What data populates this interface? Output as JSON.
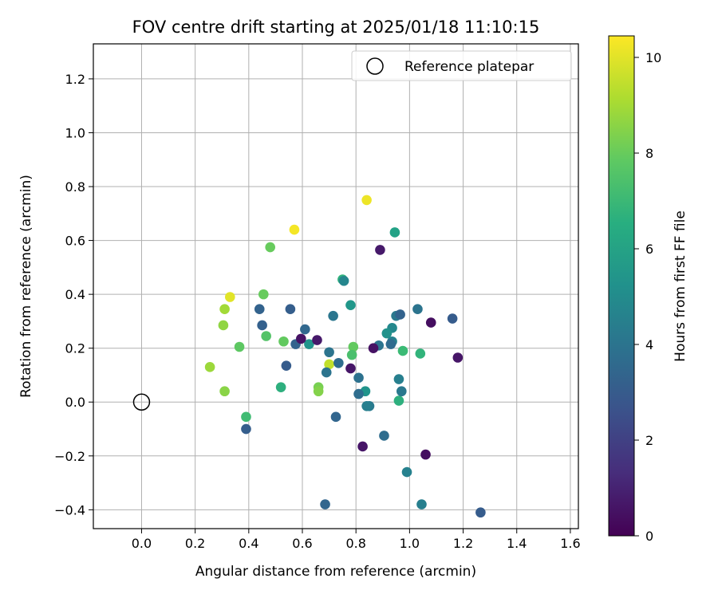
{
  "chart_data": {
    "type": "scatter",
    "title": "FOV centre drift starting at 2025/01/18 11:10:15",
    "xlabel": "Angular distance from reference (arcmin)",
    "ylabel": "Rotation from reference (arcmin)",
    "xlim": [
      -0.18,
      1.63
    ],
    "ylim": [
      -0.47,
      1.33
    ],
    "xticks": [
      "0.0",
      "0.2",
      "0.4",
      "0.6",
      "0.8",
      "1.0",
      "1.2",
      "1.4",
      "1.6"
    ],
    "xtick_values": [
      0.0,
      0.2,
      0.4,
      0.6,
      0.8,
      1.0,
      1.2,
      1.4,
      1.6
    ],
    "yticks": [
      "−0.4",
      "−0.2",
      "0.0",
      "0.2",
      "0.4",
      "0.6",
      "0.8",
      "1.0",
      "1.2"
    ],
    "ytick_values": [
      -0.4,
      -0.2,
      0.0,
      0.2,
      0.4,
      0.6,
      0.8,
      1.0,
      1.2
    ],
    "grid": true,
    "legend": {
      "placement": "top-right",
      "entries": [
        {
          "label": "Reference platepar",
          "marker": "open-circle"
        }
      ]
    },
    "reference_point": {
      "x": 0.0,
      "y": 0.0
    },
    "colorbar": {
      "label": "Hours from first FF file",
      "colormap": "viridis",
      "range": [
        0,
        10.45
      ],
      "ticks": [
        "0",
        "2",
        "4",
        "6",
        "8",
        "10"
      ],
      "tick_values": [
        0,
        2,
        4,
        6,
        8,
        10
      ]
    },
    "points": [
      {
        "x": 0.84,
        "y": 0.75,
        "c": 10.2
      },
      {
        "x": 0.57,
        "y": 0.64,
        "c": 10.3
      },
      {
        "x": 0.33,
        "y": 0.39,
        "c": 10.0
      },
      {
        "x": 0.31,
        "y": 0.345,
        "c": 9.0
      },
      {
        "x": 0.305,
        "y": 0.285,
        "c": 8.7
      },
      {
        "x": 0.255,
        "y": 0.13,
        "c": 8.9
      },
      {
        "x": 0.31,
        "y": 0.04,
        "c": 8.6
      },
      {
        "x": 0.48,
        "y": 0.575,
        "c": 8.0
      },
      {
        "x": 0.455,
        "y": 0.4,
        "c": 8.0
      },
      {
        "x": 0.365,
        "y": 0.205,
        "c": 7.8
      },
      {
        "x": 0.465,
        "y": 0.245,
        "c": 7.6
      },
      {
        "x": 0.53,
        "y": 0.225,
        "c": 7.9
      },
      {
        "x": 0.66,
        "y": 0.055,
        "c": 8.3
      },
      {
        "x": 0.66,
        "y": 0.04,
        "c": 8.5
      },
      {
        "x": 0.7,
        "y": 0.14,
        "c": 9.5
      },
      {
        "x": 0.79,
        "y": 0.205,
        "c": 7.9
      },
      {
        "x": 0.785,
        "y": 0.175,
        "c": 7.4
      },
      {
        "x": 0.39,
        "y": -0.055,
        "c": 7.2
      },
      {
        "x": 0.52,
        "y": 0.055,
        "c": 6.6
      },
      {
        "x": 0.75,
        "y": 0.455,
        "c": 6.7
      },
      {
        "x": 0.945,
        "y": 0.63,
        "c": 6.0
      },
      {
        "x": 0.975,
        "y": 0.19,
        "c": 7.1
      },
      {
        "x": 1.04,
        "y": 0.18,
        "c": 6.8
      },
      {
        "x": 0.96,
        "y": 0.005,
        "c": 6.6
      },
      {
        "x": 0.835,
        "y": 0.04,
        "c": 5.4
      },
      {
        "x": 0.78,
        "y": 0.36,
        "c": 5.5
      },
      {
        "x": 0.625,
        "y": 0.215,
        "c": 5.4
      },
      {
        "x": 0.755,
        "y": 0.45,
        "c": 4.8
      },
      {
        "x": 0.935,
        "y": 0.275,
        "c": 4.9
      },
      {
        "x": 0.915,
        "y": 0.255,
        "c": 5.3
      },
      {
        "x": 0.935,
        "y": 0.225,
        "c": 4.6
      },
      {
        "x": 0.93,
        "y": 0.215,
        "c": 3.6
      },
      {
        "x": 0.95,
        "y": 0.32,
        "c": 4.2
      },
      {
        "x": 0.96,
        "y": 0.085,
        "c": 4.5
      },
      {
        "x": 0.97,
        "y": 0.04,
        "c": 4.2
      },
      {
        "x": 0.85,
        "y": -0.015,
        "c": 4.3
      },
      {
        "x": 0.84,
        "y": -0.015,
        "c": 4.5
      },
      {
        "x": 0.99,
        "y": -0.26,
        "c": 4.6
      },
      {
        "x": 1.045,
        "y": -0.38,
        "c": 4.5
      },
      {
        "x": 1.03,
        "y": 0.345,
        "c": 4.0
      },
      {
        "x": 0.965,
        "y": 0.325,
        "c": 3.3
      },
      {
        "x": 0.885,
        "y": 0.21,
        "c": 4.0
      },
      {
        "x": 0.905,
        "y": -0.125,
        "c": 3.7
      },
      {
        "x": 0.81,
        "y": 0.09,
        "c": 3.9
      },
      {
        "x": 0.81,
        "y": 0.03,
        "c": 3.7
      },
      {
        "x": 0.715,
        "y": 0.32,
        "c": 4.1
      },
      {
        "x": 0.7,
        "y": 0.185,
        "c": 4.0
      },
      {
        "x": 0.735,
        "y": 0.145,
        "c": 3.7
      },
      {
        "x": 0.69,
        "y": 0.11,
        "c": 4.0
      },
      {
        "x": 0.725,
        "y": -0.055,
        "c": 3.4
      },
      {
        "x": 0.685,
        "y": -0.38,
        "c": 3.4
      },
      {
        "x": 0.61,
        "y": 0.27,
        "c": 3.5
      },
      {
        "x": 0.575,
        "y": 0.215,
        "c": 3.3
      },
      {
        "x": 0.555,
        "y": 0.345,
        "c": 3.1
      },
      {
        "x": 0.44,
        "y": 0.345,
        "c": 3.3
      },
      {
        "x": 0.45,
        "y": 0.285,
        "c": 3.2
      },
      {
        "x": 0.54,
        "y": 0.135,
        "c": 3.0
      },
      {
        "x": 0.39,
        "y": -0.1,
        "c": 3.1
      },
      {
        "x": 1.16,
        "y": 0.31,
        "c": 3.0
      },
      {
        "x": 1.265,
        "y": -0.41,
        "c": 3.0
      },
      {
        "x": 0.89,
        "y": 0.565,
        "c": 0.7
      },
      {
        "x": 0.865,
        "y": 0.2,
        "c": 0.5
      },
      {
        "x": 0.78,
        "y": 0.125,
        "c": 0.6
      },
      {
        "x": 0.655,
        "y": 0.23,
        "c": 0.7
      },
      {
        "x": 0.595,
        "y": 0.235,
        "c": 0.5
      },
      {
        "x": 0.825,
        "y": -0.165,
        "c": 0.6
      },
      {
        "x": 1.08,
        "y": 0.295,
        "c": 0.4
      },
      {
        "x": 1.18,
        "y": 0.165,
        "c": 0.6
      },
      {
        "x": 1.06,
        "y": -0.195,
        "c": 0.4
      }
    ]
  }
}
